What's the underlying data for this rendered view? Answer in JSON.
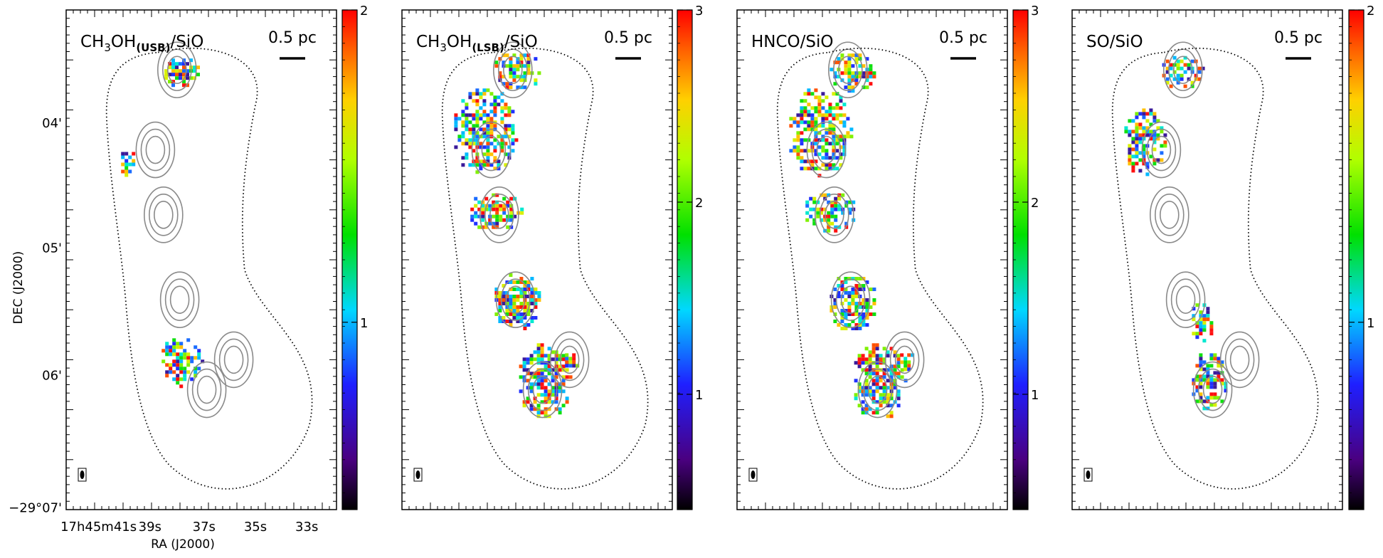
{
  "figure": {
    "xlabel": "RA (J2000)",
    "ylabel": "DEC (J2000)",
    "scale_bar_label": "0.5 pc",
    "x_ticks": [
      {
        "h": "17",
        "m": "45",
        "s": "41",
        "label": "17h45m41s"
      },
      {
        "s": "39",
        "label": "39s"
      },
      {
        "s": "37",
        "label": "37s"
      },
      {
        "s": "35",
        "label": "35s"
      },
      {
        "s": "33",
        "label": "33s"
      }
    ],
    "y_ticks": [
      {
        "label": "04'",
        "sup": ""
      },
      {
        "label": "05'",
        "sup": ""
      },
      {
        "label": "06'",
        "sup": ""
      },
      {
        "label": "−29°07'",
        "sup": "o"
      }
    ]
  },
  "chart_data": [
    {
      "type": "heatmap",
      "title_main": "CH",
      "title_sub1": "3",
      "title_mid": "OH",
      "title_sub2": "(USB)",
      "title_end": "/SiO",
      "colorbar_range": [
        0.4,
        2
      ],
      "colorbar_ticks": [
        1,
        2
      ],
      "icon": "rainbow-colormap"
    },
    {
      "type": "heatmap",
      "title_main": "CH",
      "title_sub1": "3",
      "title_mid": "OH",
      "title_sub2": "(LSB)",
      "title_end": "/SiO",
      "colorbar_range": [
        0.4,
        3
      ],
      "colorbar_ticks": [
        1,
        2,
        3
      ],
      "icon": "rainbow-colormap"
    },
    {
      "type": "heatmap",
      "title_main": "HNCO/SiO",
      "title_sub1": "",
      "title_mid": "",
      "title_sub2": "",
      "title_end": "",
      "colorbar_range": [
        0.4,
        3
      ],
      "colorbar_ticks": [
        1,
        2,
        3
      ],
      "icon": "rainbow-colormap"
    },
    {
      "type": "heatmap",
      "title_main": "SO/SiO",
      "title_sub1": "",
      "title_mid": "",
      "title_sub2": "",
      "title_end": "",
      "colorbar_range": [
        0.4,
        2
      ],
      "colorbar_ticks": [
        1,
        2
      ],
      "icon": "rainbow-colormap"
    }
  ]
}
